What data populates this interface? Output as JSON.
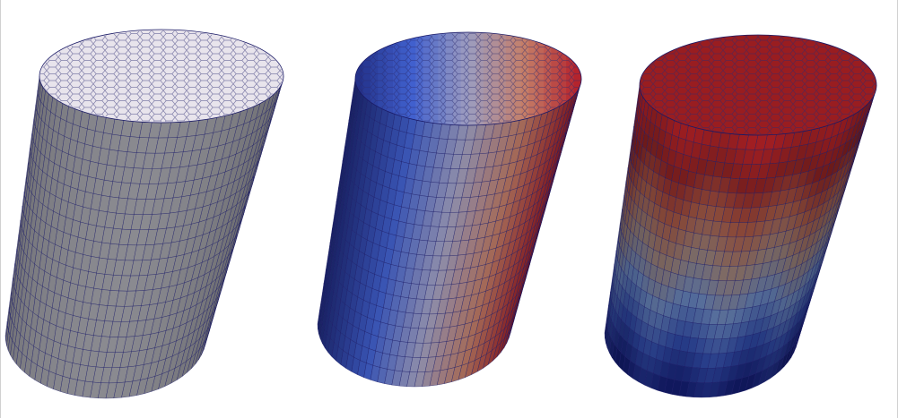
{
  "scene": {
    "background": "#ffffff",
    "edge_color": "#1a1a66",
    "cylinders": [
      {
        "id": "uniform",
        "coloring": "uniform",
        "top_color": "#e8e4ec",
        "side_color": "#8a8a90"
      },
      {
        "id": "horizontal-gradient",
        "coloring": "horizontal",
        "colormap": [
          "#1e2a78",
          "#3a56b8",
          "#8c8caa",
          "#b0705c",
          "#a01a24"
        ]
      },
      {
        "id": "vertical-gradient",
        "coloring": "vertical",
        "colormap": [
          "#10185e",
          "#283e8a",
          "#566e9c",
          "#7e6a64",
          "#8a4a3a",
          "#7a1e1e",
          "#a11e22"
        ]
      }
    ]
  }
}
